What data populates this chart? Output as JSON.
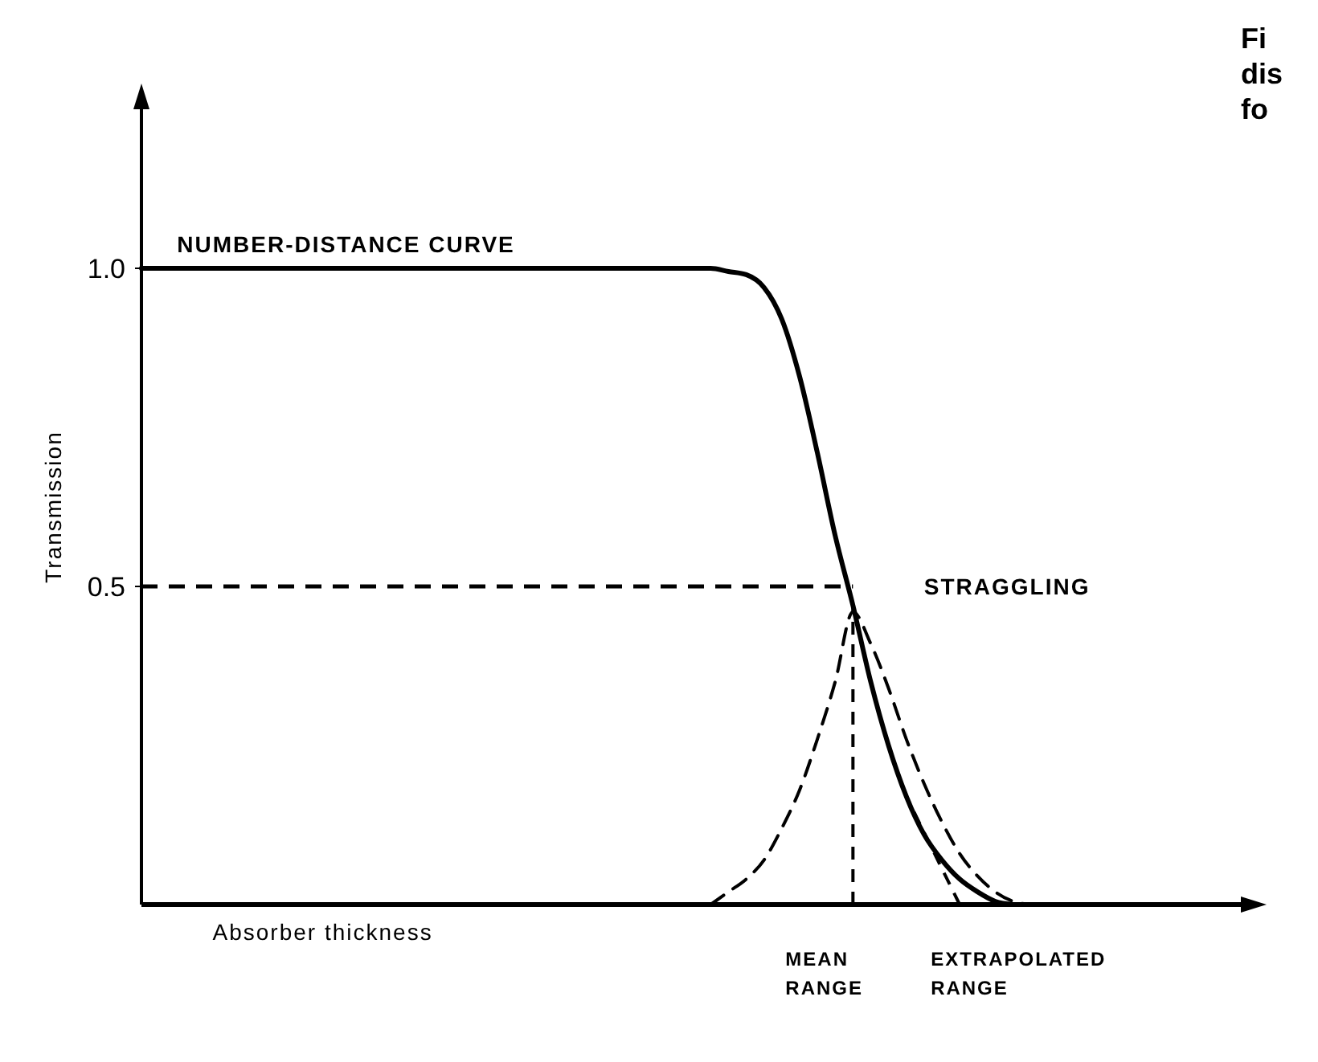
{
  "chart_data": {
    "type": "line",
    "xlabel": "Absorber thickness",
    "ylabel": "Transmission",
    "categories": [
      null,
      null,
      null,
      null,
      null,
      null,
      null,
      null,
      null,
      null,
      null,
      null,
      null,
      null,
      null,
      null,
      null,
      null,
      null,
      null,
      null,
      null,
      null,
      null,
      null,
      null,
      null,
      null,
      null,
      null,
      null,
      null,
      null,
      null,
      null,
      null,
      null,
      null,
      null,
      null,
      null,
      null,
      null,
      null,
      null,
      null,
      null,
      null,
      null,
      null,
      null,
      null,
      null,
      null,
      null,
      null,
      null,
      null,
      null,
      null,
      null
    ],
    "series": [
      {
        "color": "#000000",
        "line_style": "solid",
        "values": [
          1,
          1,
          1,
          1,
          1,
          1,
          1,
          1,
          1,
          1,
          1,
          1,
          1,
          1,
          1,
          1,
          1,
          1,
          1,
          1,
          1,
          1,
          1,
          1,
          1,
          1,
          1,
          1,
          1,
          1,
          1,
          1,
          1,
          0.995,
          0.99,
          0.97,
          0.92,
          0.83,
          0.71,
          0.58,
          0.47,
          0.35,
          0.25,
          0.17,
          0.11,
          0.07,
          0.04,
          0.02,
          0.005,
          0,
          null,
          null,
          null,
          null,
          null,
          null,
          null,
          null,
          null,
          null,
          null
        ]
      },
      {
        "color": "#000000",
        "line_style": "dashed",
        "values": [
          null,
          null,
          null,
          null,
          null,
          null,
          null,
          null,
          null,
          null,
          null,
          null,
          null,
          null,
          null,
          null,
          null,
          null,
          null,
          null,
          null,
          null,
          null,
          null,
          null,
          null,
          null,
          null,
          null,
          null,
          null,
          null,
          0,
          0.02,
          0.04,
          0.07,
          0.12,
          0.18,
          0.26,
          0.35,
          0.46,
          0.41,
          0.34,
          0.26,
          0.19,
          0.13,
          0.08,
          0.045,
          0.02,
          0.005,
          0,
          null,
          null,
          null,
          null,
          null,
          null,
          null,
          null,
          null,
          null
        ]
      }
    ],
    "ylim": [
      0,
      1.25
    ],
    "yticks": [
      {
        "value": 0.5,
        "label": "0.5"
      },
      {
        "value": 1,
        "label": "1.0"
      }
    ],
    "ref_lines": [
      {
        "axis": "y",
        "value": 0.5,
        "line_style": "dashed"
      }
    ],
    "annotations": [
      "NUMBER-DISTANCE CURVE",
      "STRAGGLING",
      "MEAN RANGE",
      "EXTRAPOLATED RANGE",
      "Fi",
      "dis",
      "fo"
    ]
  }
}
